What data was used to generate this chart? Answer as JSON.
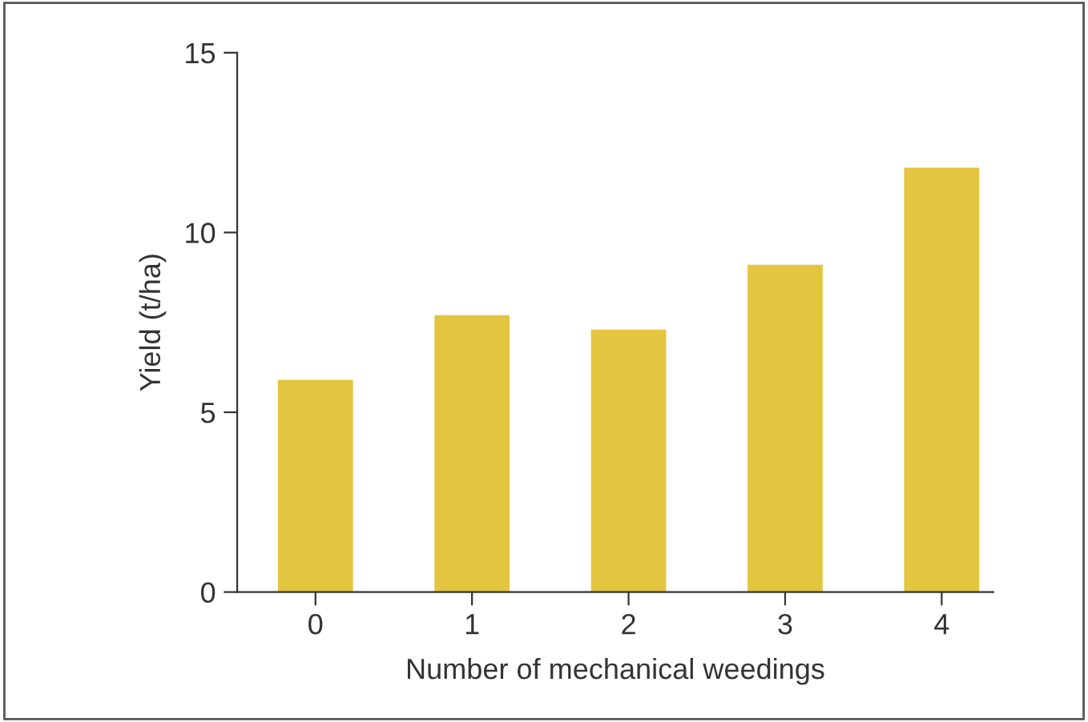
{
  "chart_data": {
    "type": "bar",
    "xlabel": "Number of mechanical weedings",
    "ylabel": "Yield (t/ha)",
    "categories": [
      "0",
      "1",
      "2",
      "3",
      "4"
    ],
    "values": [
      5.9,
      7.7,
      7.3,
      9.1,
      11.8
    ],
    "color": "#e3c540",
    "ylim": [
      0,
      15
    ],
    "yticks": [
      0,
      5,
      10,
      15
    ],
    "grid": false,
    "legend": false
  }
}
